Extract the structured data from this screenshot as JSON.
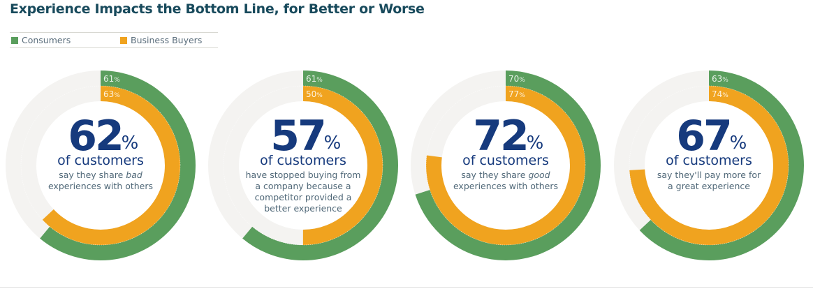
{
  "title": "Experience Impacts the Bottom Line, for Better or Worse",
  "legend": [
    {
      "label": "Consumers",
      "color": "#5a9e5d"
    },
    {
      "label": "Business Buyers",
      "color": "#f0a31f"
    }
  ],
  "colors": {
    "track": "#f4f3f1",
    "number": "#163a7d",
    "subtext": "#506878"
  },
  "chart_data": [
    {
      "type": "pie",
      "variant": "nested-donut",
      "headline": "62",
      "headline_unit": "%",
      "subject": "of customers",
      "description": [
        "say they share bad",
        "experiences with others"
      ],
      "emphasis": "bad",
      "series": [
        {
          "name": "Consumers",
          "value": 61,
          "label": "61%"
        },
        {
          "name": "Business Buyers",
          "value": 63,
          "label": "63%"
        }
      ]
    },
    {
      "type": "pie",
      "variant": "nested-donut",
      "headline": "57",
      "headline_unit": "%",
      "subject": "of customers",
      "description": [
        "have stopped buying from",
        "a company because a",
        "competitor provided a",
        "better experience"
      ],
      "series": [
        {
          "name": "Consumers",
          "value": 61,
          "label": "61%"
        },
        {
          "name": "Business Buyers",
          "value": 50,
          "label": "50%"
        }
      ]
    },
    {
      "type": "pie",
      "variant": "nested-donut",
      "headline": "72",
      "headline_unit": "%",
      "subject": "of customers",
      "description": [
        "say they share good",
        "experiences with others"
      ],
      "emphasis": "good",
      "series": [
        {
          "name": "Consumers",
          "value": 70,
          "label": "70%"
        },
        {
          "name": "Business Buyers",
          "value": 77,
          "label": "77%"
        }
      ]
    },
    {
      "type": "pie",
      "variant": "nested-donut",
      "headline": "67",
      "headline_unit": "%",
      "subject": "of customers",
      "description": [
        "say they'll pay more for",
        "a great experience"
      ],
      "series": [
        {
          "name": "Consumers",
          "value": 63,
          "label": "63%"
        },
        {
          "name": "Business Buyers",
          "value": 74,
          "label": "74%"
        }
      ]
    }
  ]
}
